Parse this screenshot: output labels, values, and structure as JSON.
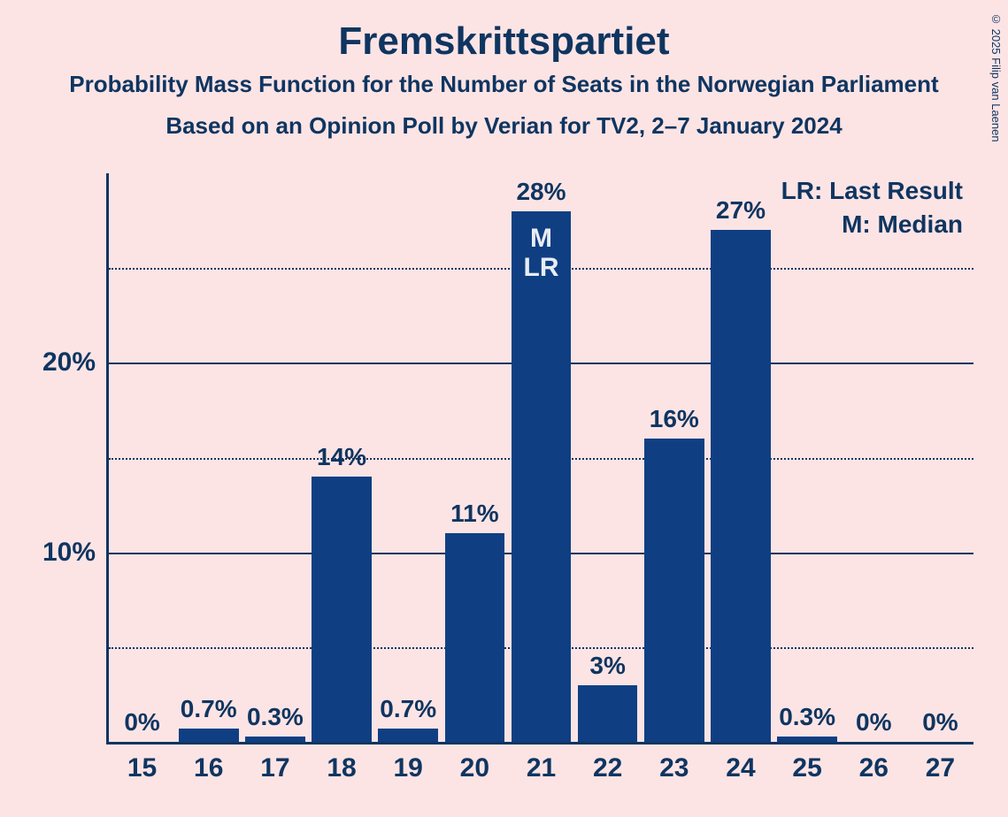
{
  "title": "Fremskrittspartiet",
  "subtitle1": "Probability Mass Function for the Number of Seats in the Norwegian Parliament",
  "subtitle2": "Based on an Opinion Poll by Verian for TV2, 2–7 January 2024",
  "copyright": "© 2025 Filip van Laenen",
  "legend": {
    "lr": "LR: Last Result",
    "m": "M: Median"
  },
  "chart": {
    "type": "bar",
    "background_color": "#fce4e5",
    "bar_color": "#0f3f82",
    "text_color": "#0f3560",
    "annotation_color": "#e8ecf4",
    "y_axis": {
      "max": 30,
      "major_ticks": [
        10,
        20
      ],
      "minor_ticks": [
        5,
        15,
        25
      ],
      "labels": {
        "10": "10%",
        "20": "20%"
      }
    },
    "categories": [
      "15",
      "16",
      "17",
      "18",
      "19",
      "20",
      "21",
      "22",
      "23",
      "24",
      "25",
      "26",
      "27"
    ],
    "values": [
      0,
      0.7,
      0.3,
      14,
      0.7,
      11,
      28,
      3,
      16,
      27,
      0.3,
      0,
      0
    ],
    "value_labels": [
      "0%",
      "0.7%",
      "0.3%",
      "14%",
      "0.7%",
      "11%",
      "28%",
      "3%",
      "16%",
      "27%",
      "0.3%",
      "0%",
      "0%"
    ],
    "annotations": {
      "21": [
        "M",
        "LR"
      ]
    },
    "bar_width_ratio": 0.9,
    "title_fontsize": 44,
    "subtitle_fontsize": 26,
    "axis_label_fontsize": 30,
    "bar_label_fontsize": 28
  }
}
